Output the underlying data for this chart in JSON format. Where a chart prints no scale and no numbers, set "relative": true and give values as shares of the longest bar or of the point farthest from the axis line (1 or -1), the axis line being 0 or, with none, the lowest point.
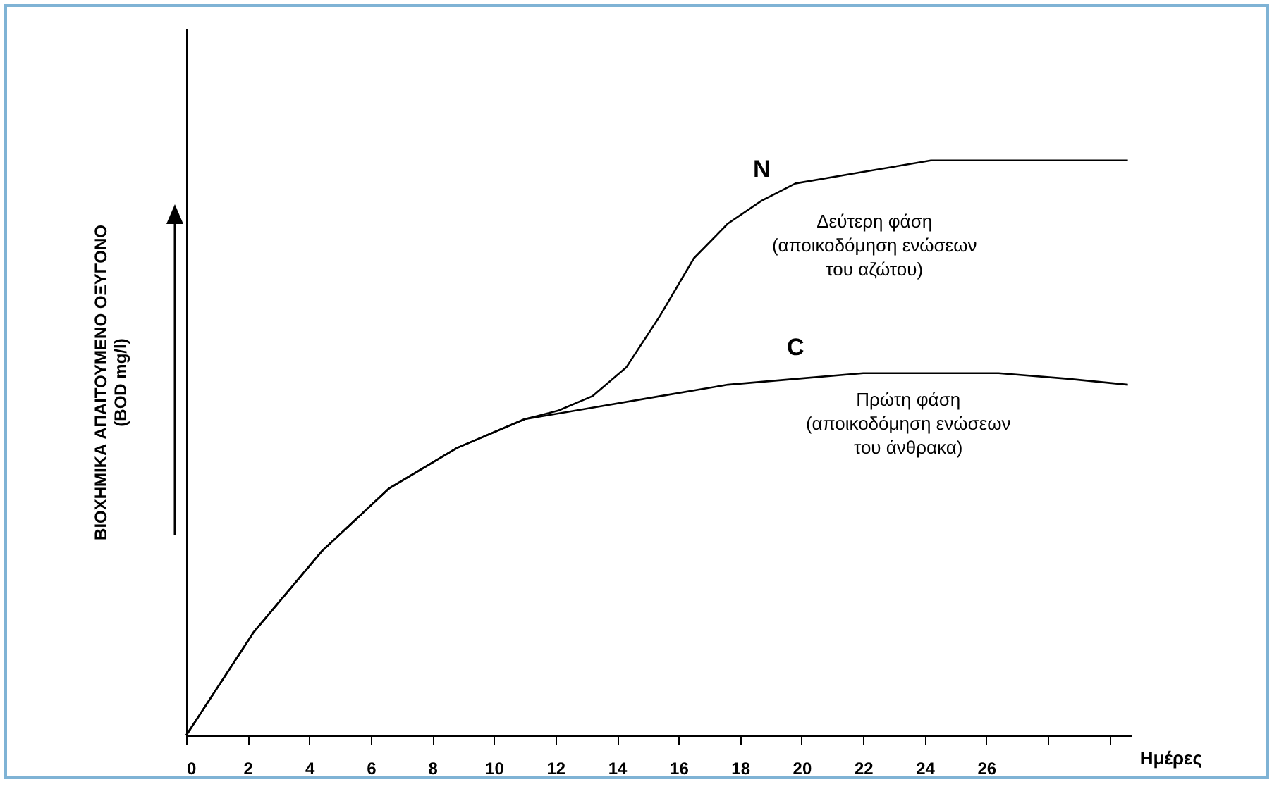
{
  "chart_data": {
    "type": "line",
    "relative": true,
    "xlabel": "Ημέρες",
    "ylabel": "ΒΙΟΧΗΜΙΚΑ ΑΠΑΙΤΟΥΜΕΝΟ ΟΞΥΓΟΝΟ\n(BOD mg/l)",
    "xlim": [
      0,
      30.7
    ],
    "xticks": [
      0,
      2,
      4,
      6,
      8,
      10,
      12,
      14,
      16,
      18,
      20,
      22,
      24,
      26,
      {
        "value": 28,
        "label": null
      },
      {
        "value": 30,
        "label": null
      }
    ],
    "grid": false,
    "legend": false,
    "marker": "none",
    "line_style": "solid",
    "series": [
      {
        "name": "N",
        "color": "#000000",
        "x": [
          0,
          2.2,
          4.4,
          6.6,
          8.8,
          11,
          12.1,
          13.2,
          14.3,
          15.4,
          16.5,
          17.6,
          18.7,
          19.8,
          22,
          24.2,
          26.4,
          28.7,
          30.6
        ],
        "values": [
          0,
          0.18,
          0.32,
          0.43,
          0.5,
          0.55,
          0.565,
          0.59,
          0.64,
          0.73,
          0.83,
          0.89,
          0.93,
          0.96,
          0.98,
          1,
          1,
          1,
          1
        ]
      },
      {
        "name": "C",
        "color": "#000000",
        "x": [
          0,
          2.2,
          4.4,
          6.6,
          8.8,
          11,
          13.2,
          15.4,
          17.6,
          19.8,
          22,
          24.2,
          26.4,
          28.7,
          30.6
        ],
        "values": [
          0,
          0.18,
          0.32,
          0.43,
          0.5,
          0.55,
          0.57,
          0.59,
          0.61,
          0.62,
          0.63,
          0.63,
          0.63,
          0.62,
          0.61
        ]
      }
    ],
    "annotations": [
      "Δεύτερη φάση\n(αποικοδόμηση ενώσεων\nτου αζώτου)",
      "Πρώτη φάση\n(αποικοδόμηση ενώσεων\nτου άνθρακα)"
    ]
  }
}
